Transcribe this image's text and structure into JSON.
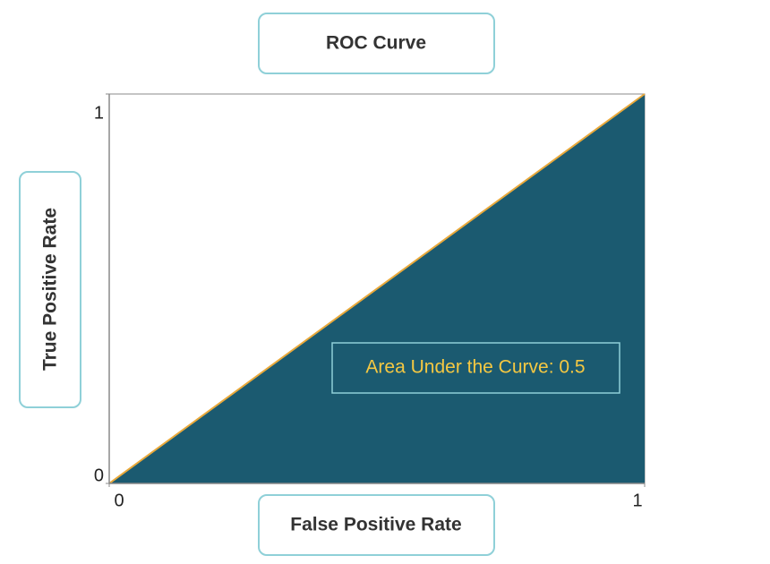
{
  "chart_data": {
    "type": "area",
    "title": "ROC Curve",
    "x_label": "False Positive Rate",
    "y_label": "True Positive Rate",
    "x": [
      0,
      1
    ],
    "values": [
      0,
      1
    ],
    "xlim": [
      0,
      1
    ],
    "ylim": [
      0,
      1
    ],
    "xticks": [
      0,
      1
    ],
    "yticks": [
      0,
      1
    ],
    "fill_color": "#1b5a70",
    "line_color": "#e9a93b",
    "annotation": "Area Under the Curve: 0.5"
  }
}
